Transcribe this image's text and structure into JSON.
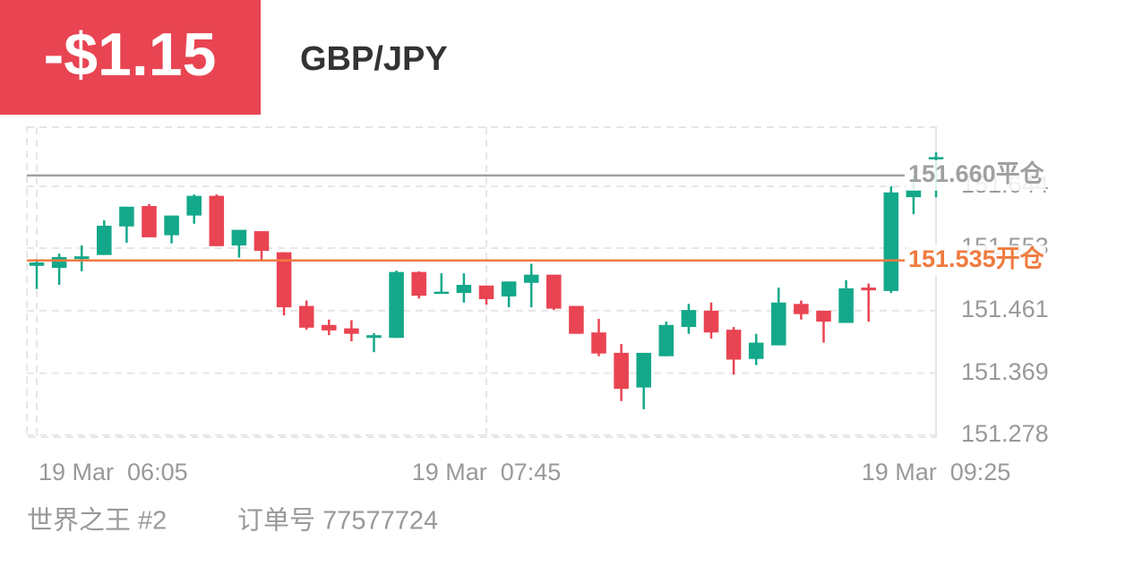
{
  "header": {
    "pnl": "-$1.15",
    "symbol": "GBP/JPY"
  },
  "chart_data": {
    "type": "candlestick",
    "categories": [
      "19 Mar  06:05",
      null,
      null,
      null,
      null,
      null,
      null,
      null,
      null,
      null,
      null,
      null,
      null,
      null,
      null,
      null,
      null,
      null,
      null,
      null,
      "19 Mar  07:45",
      null,
      null,
      null,
      null,
      null,
      null,
      null,
      null,
      null,
      null,
      null,
      null,
      null,
      null,
      null,
      null,
      null,
      null,
      null,
      "19 Mar  09:25"
    ],
    "open": [
      151.527,
      151.524,
      151.537,
      151.543,
      151.585,
      151.615,
      151.572,
      151.601,
      151.63,
      151.557,
      151.578,
      151.547,
      151.468,
      151.44,
      151.435,
      151.421,
      151.421,
      151.518,
      151.486,
      151.487,
      151.498,
      151.482,
      151.502,
      151.514,
      151.468,
      151.429,
      151.399,
      151.348,
      151.394,
      151.437,
      151.461,
      151.433,
      151.39,
      151.41,
      151.471,
      151.461,
      151.443,
      151.495,
      151.49,
      151.628,
      151.684
    ],
    "high": [
      151.536,
      151.545,
      151.557,
      151.594,
      151.614,
      151.618,
      151.601,
      151.632,
      151.632,
      151.58,
      151.578,
      151.547,
      151.476,
      151.448,
      151.447,
      151.428,
      151.52,
      151.519,
      151.516,
      151.516,
      151.498,
      151.504,
      151.53,
      151.514,
      151.468,
      151.449,
      151.412,
      151.399,
      151.445,
      151.471,
      151.473,
      151.437,
      151.427,
      151.495,
      151.476,
      151.461,
      151.506,
      151.501,
      151.644,
      151.66,
      151.694
    ],
    "low": [
      151.493,
      151.499,
      151.519,
      151.543,
      151.561,
      151.569,
      151.56,
      151.589,
      151.556,
      151.539,
      151.536,
      151.454,
      151.433,
      151.425,
      151.416,
      151.4,
      151.421,
      151.479,
      151.486,
      151.473,
      151.47,
      151.466,
      151.466,
      151.462,
      151.427,
      151.394,
      151.328,
      151.316,
      151.394,
      151.427,
      151.42,
      151.367,
      151.381,
      151.41,
      151.448,
      151.414,
      151.443,
      151.445,
      151.487,
      151.603,
      151.628
    ],
    "close": [
      151.532,
      151.54,
      151.541,
      151.586,
      151.614,
      151.569,
      151.601,
      151.63,
      151.556,
      151.58,
      151.549,
      151.466,
      151.436,
      151.432,
      151.427,
      151.425,
      151.518,
      151.483,
      151.489,
      151.499,
      151.478,
      151.504,
      151.514,
      151.464,
      151.427,
      151.398,
      151.346,
      151.399,
      151.44,
      151.462,
      151.429,
      151.389,
      151.414,
      151.473,
      151.456,
      151.445,
      151.494,
      151.491,
      151.635,
      151.639,
      151.687
    ],
    "up_color": "#14a88a",
    "down_color": "#e94452",
    "ylim": [
      151.275,
      151.731
    ],
    "yticks": [
      151.278,
      151.369,
      151.461,
      151.553,
      151.644
    ],
    "grid": true,
    "price_lines": [
      {
        "value": 151.66,
        "label": "151.660平仓",
        "color": "#a0a0a0"
      },
      {
        "value": 151.535,
        "label": "151.535开仓",
        "color": "#f07b3f"
      }
    ]
  },
  "footer": {
    "account": "世界之王 #2",
    "order": "订单号 77577724"
  }
}
